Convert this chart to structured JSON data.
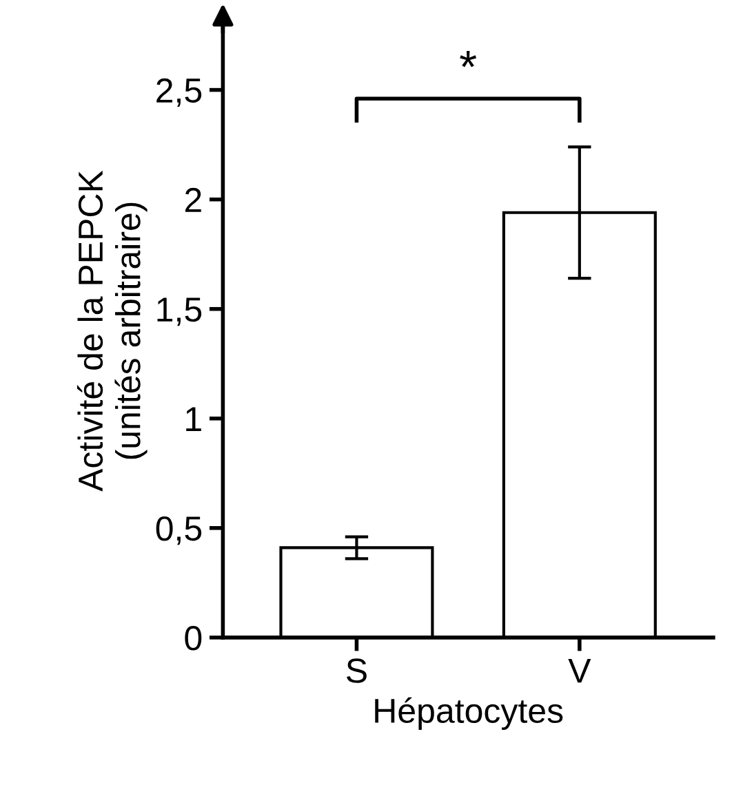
{
  "chart_data": {
    "type": "bar",
    "xlabel": "Hépatocytes",
    "ylabel": "Activité de la PEPCK\n(unités arbitraire)",
    "categories": [
      "S",
      "V"
    ],
    "values": [
      0.41,
      1.94
    ],
    "errors": [
      0.05,
      0.3
    ],
    "color": "#ffffff",
    "ylim": [
      0,
      2.8
    ],
    "yticks": [
      0,
      {
        "value": 0.5,
        "label": "0,5"
      },
      1,
      {
        "value": 1.5,
        "label": "1,5"
      },
      2,
      {
        "value": 2.5,
        "label": "2,5"
      }
    ],
    "annotations": [
      "*"
    ],
    "grid": false,
    "legend": false
  }
}
